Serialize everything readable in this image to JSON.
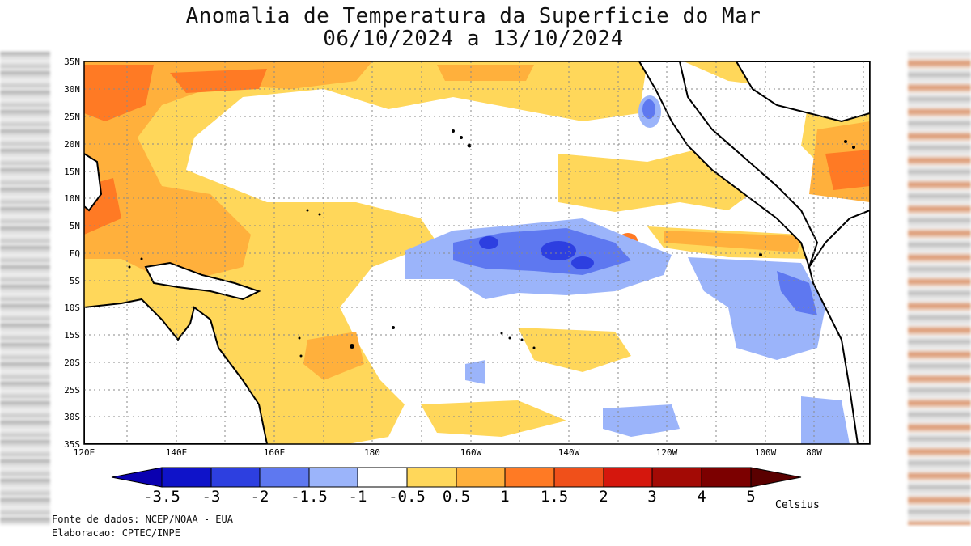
{
  "title": {
    "line1": "Anomalia de Temperatura da Superficie do Mar",
    "line2": "06/10/2024 a 13/10/2024"
  },
  "axes": {
    "lat_labels": [
      "35N",
      "30N",
      "25N",
      "20N",
      "15N",
      "10N",
      "5N",
      "EQ",
      "5S",
      "10S",
      "15S",
      "20S",
      "25S",
      "30S",
      "35S"
    ],
    "lon_labels": [
      "120E",
      "140E",
      "160E",
      "180",
      "160W",
      "140W",
      "120W",
      "100W",
      "80W"
    ]
  },
  "colorbar": {
    "unit": "Celsius",
    "tick_labels": [
      "-3.5",
      "-3",
      "-2",
      "-1.5",
      "-1",
      "-0.5",
      "0.5",
      "1",
      "1.5",
      "2",
      "3",
      "4",
      "5"
    ],
    "colors": {
      "below": "#0a00b0",
      "bins": [
        "#0f13c9",
        "#2d3fe0",
        "#5e78f0",
        "#9bb4fa",
        "#ffffff",
        "#ffd75a",
        "#ffb03c",
        "#ff7a24",
        "#f0501a",
        "#d5170d",
        "#a30a05",
        "#7c0000"
      ],
      "above": "#5a0000"
    }
  },
  "credits": {
    "source": "Fonte de dados: NCEP/NOAA - EUA",
    "elaboration": "Elaboracao: CPTEC/INPE"
  },
  "colors": {
    "warm_light": "#ffd75a",
    "warm_mid": "#ffb03c",
    "warm_strong": "#ff7a24",
    "cool_light": "#9bb4fa",
    "cool_mid": "#5e78f0",
    "cool_strong": "#2d3fe0"
  }
}
